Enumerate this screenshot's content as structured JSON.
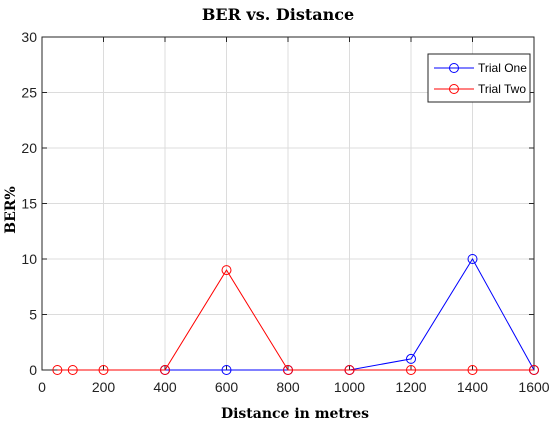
{
  "chart_data": {
    "type": "line",
    "title": "BER vs. Distance",
    "xlabel": "Distance in metres",
    "ylabel": "BER%",
    "xlim": [
      0,
      1600
    ],
    "ylim": [
      0,
      30
    ],
    "xticks": [
      0,
      200,
      400,
      600,
      800,
      1000,
      1200,
      1400,
      1600
    ],
    "yticks": [
      0,
      5,
      10,
      15,
      20,
      25,
      30
    ],
    "grid": true,
    "legend_position": "top-right",
    "series": [
      {
        "name": "Trial One",
        "color": "#0000ff",
        "marker": "circle",
        "x": [
          400,
          600,
          800,
          1000,
          1200,
          1400,
          1600
        ],
        "y": [
          0,
          0,
          0,
          0,
          1,
          10,
          0
        ]
      },
      {
        "name": "Trial Two",
        "color": "#ff0000",
        "marker": "circle",
        "x": [
          50,
          100,
          200,
          400,
          600,
          800,
          1000,
          1200,
          1400,
          1600
        ],
        "y": [
          0,
          0,
          0,
          0,
          9,
          0,
          0,
          0,
          0,
          0
        ]
      }
    ]
  }
}
